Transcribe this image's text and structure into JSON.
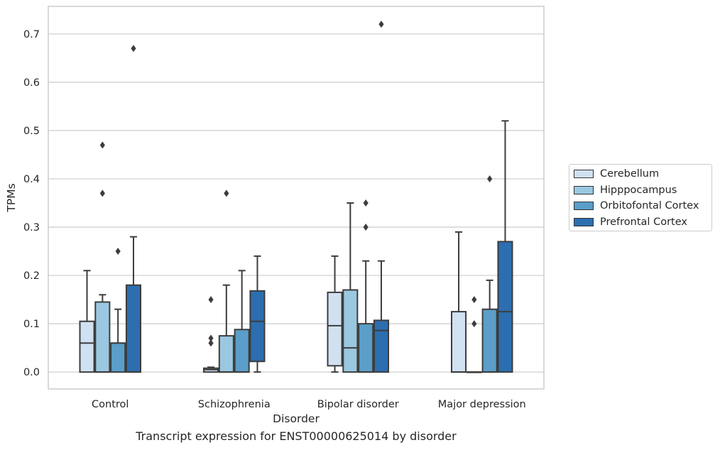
{
  "chart_data": {
    "type": "box",
    "xlabel": "Disorder",
    "ylabel": "TPMs",
    "ylim": [
      -0.035,
      0.757
    ],
    "yticks": [
      0.0,
      0.1,
      0.2,
      0.3,
      0.4,
      0.5,
      0.6,
      0.7
    ],
    "grid": "y",
    "legend_placement": "right",
    "categories": [
      "Control",
      "Schizophrenia",
      "Bipolar disorder",
      "Major depression"
    ],
    "series": [
      {
        "name": "Cerebellum",
        "color": "#d0e1f2",
        "boxes": [
          {
            "q1": 0.0,
            "median": 0.06,
            "q3": 0.105,
            "whisker_low": 0.0,
            "whisker_high": 0.21,
            "outliers": []
          },
          {
            "q1": 0.0,
            "median": 0.005,
            "q3": 0.008,
            "whisker_low": 0.0,
            "whisker_high": 0.01,
            "outliers": [
              0.06,
              0.07,
              0.15
            ]
          },
          {
            "q1": 0.013,
            "median": 0.096,
            "q3": 0.165,
            "whisker_low": 0.0,
            "whisker_high": 0.24,
            "outliers": []
          },
          {
            "q1": 0.0,
            "median": 0.0,
            "q3": 0.125,
            "whisker_low": 0.0,
            "whisker_high": 0.29,
            "outliers": []
          }
        ]
      },
      {
        "name": "Hipppocampus",
        "color": "#9ac8e0",
        "boxes": [
          {
            "q1": 0.0,
            "median": 0.0,
            "q3": 0.145,
            "whisker_low": 0.0,
            "whisker_high": 0.16,
            "outliers": [
              0.37,
              0.47
            ]
          },
          {
            "q1": 0.0,
            "median": 0.0,
            "q3": 0.075,
            "whisker_low": 0.0,
            "whisker_high": 0.18,
            "outliers": [
              0.37
            ]
          },
          {
            "q1": 0.0,
            "median": 0.05,
            "q3": 0.17,
            "whisker_low": 0.0,
            "whisker_high": 0.35,
            "outliers": []
          },
          {
            "q1": 0.0,
            "median": 0.0,
            "q3": 0.0,
            "whisker_low": 0.0,
            "whisker_high": 0.0,
            "outliers": [
              0.1,
              0.15
            ]
          }
        ]
      },
      {
        "name": "Orbitofontal Cortex",
        "color": "#5a9ec9",
        "boxes": [
          {
            "q1": 0.0,
            "median": 0.06,
            "q3": 0.06,
            "whisker_low": 0.0,
            "whisker_high": 0.13,
            "outliers": [
              0.25
            ]
          },
          {
            "q1": 0.0,
            "median": 0.0,
            "q3": 0.088,
            "whisker_low": 0.0,
            "whisker_high": 0.21,
            "outliers": []
          },
          {
            "q1": 0.0,
            "median": 0.0,
            "q3": 0.1,
            "whisker_low": 0.0,
            "whisker_high": 0.23,
            "outliers": [
              0.3,
              0.35
            ]
          },
          {
            "q1": 0.0,
            "median": 0.0,
            "q3": 0.13,
            "whisker_low": 0.0,
            "whisker_high": 0.19,
            "outliers": [
              0.4
            ]
          }
        ]
      },
      {
        "name": "Prefrontal Cortex",
        "color": "#2c6eaf",
        "boxes": [
          {
            "q1": 0.0,
            "median": 0.0,
            "q3": 0.18,
            "whisker_low": 0.0,
            "whisker_high": 0.28,
            "outliers": [
              0.67
            ]
          },
          {
            "q1": 0.022,
            "median": 0.105,
            "q3": 0.168,
            "whisker_low": 0.0,
            "whisker_high": 0.24,
            "outliers": []
          },
          {
            "q1": 0.0,
            "median": 0.086,
            "q3": 0.107,
            "whisker_low": 0.0,
            "whisker_high": 0.23,
            "outliers": [
              0.72
            ]
          },
          {
            "q1": 0.0,
            "median": 0.125,
            "q3": 0.27,
            "whisker_low": 0.0,
            "whisker_high": 0.52,
            "outliers": []
          }
        ]
      }
    ]
  },
  "caption": "Transcript expression for ENST00000625014 by disorder"
}
